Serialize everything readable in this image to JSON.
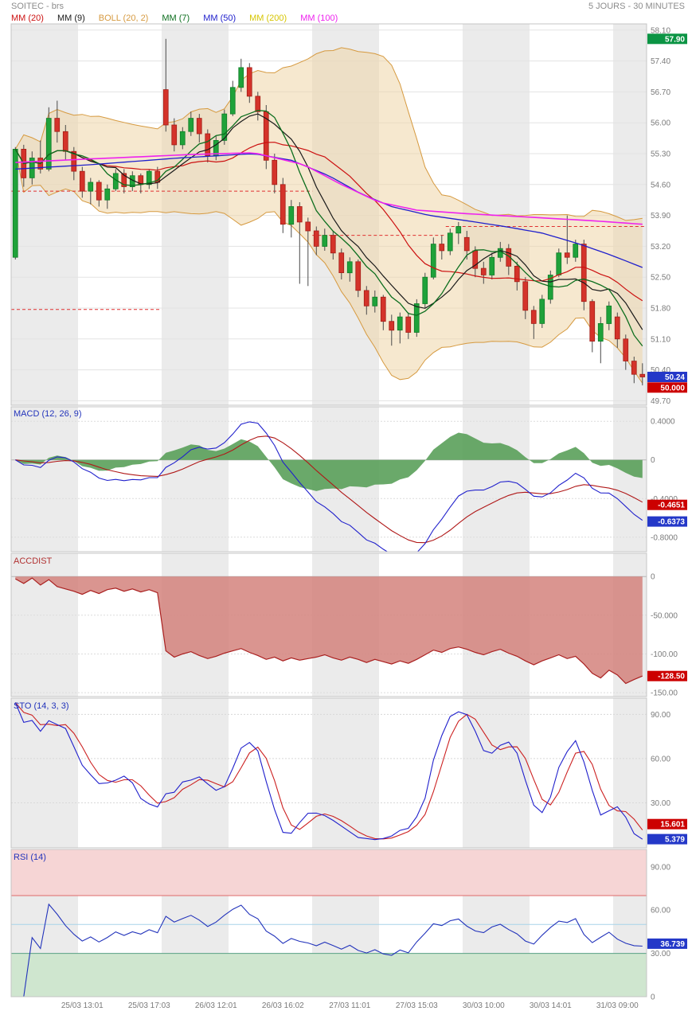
{
  "header": {
    "title": "SOITEC - brs",
    "timeframe": "5 JOURS - 30 MINUTES"
  },
  "legend": [
    {
      "label": "MM (20)",
      "color": "#cc1111"
    },
    {
      "label": "MM (9)",
      "color": "#1a1a1a"
    },
    {
      "label": "BOLL (20, 2)",
      "color": "#d69a40"
    },
    {
      "label": "MM (7)",
      "color": "#0c6e1e"
    },
    {
      "label": "MM (50)",
      "color": "#2020cc"
    },
    {
      "label": "MM (200)",
      "color": "#d6c500"
    },
    {
      "label": "MM (100)",
      "color": "#ee22ee"
    }
  ],
  "chart_data": {
    "type": "candlestick+indicators",
    "title": "SOITEC - brs",
    "subtitle": "5 JOURS - 30 MINUTES",
    "x_labels": [
      {
        "bar": 8,
        "text": "25/03 13:01"
      },
      {
        "bar": 16,
        "text": "25/03 17:03"
      },
      {
        "bar": 24,
        "text": "26/03 12:01"
      },
      {
        "bar": 32,
        "text": "26/03 16:02"
      },
      {
        "bar": 40,
        "text": "27/03 11:01"
      },
      {
        "bar": 48,
        "text": "27/03 15:03"
      },
      {
        "bar": 56,
        "text": "30/03 10:00"
      },
      {
        "bar": 64,
        "text": "30/03 14:01"
      },
      {
        "bar": 72,
        "text": "31/03 09:00"
      }
    ],
    "session_bands": [
      [
        0,
        8
      ],
      [
        18,
        26
      ],
      [
        36,
        44
      ],
      [
        54,
        62
      ],
      [
        72,
        76
      ]
    ],
    "candles": [
      [
        52.95,
        55.45,
        52.9,
        55.4
      ],
      [
        55.4,
        55.5,
        54.55,
        54.75
      ],
      [
        54.75,
        55.35,
        54.6,
        55.2
      ],
      [
        55.2,
        55.6,
        54.85,
        54.95
      ],
      [
        54.95,
        56.35,
        54.9,
        56.1
      ],
      [
        56.1,
        56.5,
        55.55,
        55.8
      ],
      [
        55.8,
        55.95,
        55.15,
        55.35
      ],
      [
        55.35,
        55.45,
        54.7,
        54.9
      ],
      [
        54.9,
        55.0,
        54.3,
        54.45
      ],
      [
        54.45,
        54.75,
        54.15,
        54.65
      ],
      [
        54.65,
        54.7,
        54.1,
        54.25
      ],
      [
        54.25,
        54.6,
        54.05,
        54.5
      ],
      [
        54.5,
        54.95,
        54.45,
        54.85
      ],
      [
        54.85,
        54.95,
        54.4,
        54.55
      ],
      [
        54.55,
        54.9,
        54.45,
        54.8
      ],
      [
        54.8,
        54.85,
        54.4,
        54.6
      ],
      [
        54.6,
        54.95,
        54.5,
        54.9
      ],
      [
        54.9,
        55.0,
        54.5,
        54.65
      ],
      [
        56.75,
        57.9,
        55.8,
        55.95
      ],
      [
        55.95,
        56.1,
        55.35,
        55.5
      ],
      [
        55.5,
        55.9,
        55.4,
        55.8
      ],
      [
        55.8,
        56.25,
        55.7,
        56.1
      ],
      [
        56.1,
        56.2,
        55.55,
        55.75
      ],
      [
        55.75,
        55.85,
        55.1,
        55.25
      ],
      [
        55.25,
        55.7,
        55.15,
        55.6
      ],
      [
        55.6,
        56.3,
        55.5,
        56.2
      ],
      [
        56.2,
        56.95,
        56.15,
        56.8
      ],
      [
        56.8,
        57.45,
        56.7,
        57.25
      ],
      [
        57.25,
        57.35,
        56.45,
        56.6
      ],
      [
        56.6,
        56.7,
        56.05,
        56.25
      ],
      [
        56.25,
        56.4,
        54.95,
        55.15
      ],
      [
        55.15,
        55.3,
        54.4,
        54.6
      ],
      [
        54.6,
        54.75,
        53.5,
        53.7
      ],
      [
        53.7,
        54.25,
        53.4,
        54.1
      ],
      [
        54.1,
        54.2,
        52.35,
        53.75
      ],
      [
        53.75,
        53.85,
        52.3,
        53.55
      ],
      [
        53.55,
        53.65,
        53.0,
        53.2
      ],
      [
        53.2,
        53.6,
        53.1,
        53.45
      ],
      [
        53.45,
        53.55,
        52.9,
        53.05
      ],
      [
        53.05,
        53.15,
        52.45,
        52.6
      ],
      [
        52.6,
        52.95,
        52.4,
        52.85
      ],
      [
        52.85,
        52.9,
        52.05,
        52.2
      ],
      [
        52.2,
        52.3,
        51.65,
        51.85
      ],
      [
        51.85,
        52.2,
        51.7,
        52.05
      ],
      [
        52.05,
        52.1,
        51.3,
        51.5
      ],
      [
        51.5,
        51.65,
        50.95,
        51.3
      ],
      [
        51.3,
        51.7,
        51.0,
        51.6
      ],
      [
        51.6,
        51.7,
        51.1,
        51.25
      ],
      [
        51.25,
        52.0,
        51.15,
        51.9
      ],
      [
        51.9,
        52.6,
        51.8,
        52.5
      ],
      [
        52.5,
        53.4,
        52.45,
        53.25
      ],
      [
        53.25,
        53.45,
        52.9,
        53.1
      ],
      [
        53.1,
        53.6,
        53.0,
        53.5
      ],
      [
        53.5,
        53.75,
        53.25,
        53.65
      ],
      [
        53.4,
        53.55,
        52.9,
        53.1
      ],
      [
        53.1,
        53.2,
        52.5,
        52.7
      ],
      [
        52.7,
        52.85,
        52.35,
        52.55
      ],
      [
        52.55,
        53.05,
        52.45,
        52.95
      ],
      [
        52.95,
        53.3,
        52.85,
        53.15
      ],
      [
        53.15,
        53.25,
        52.55,
        52.75
      ],
      [
        52.75,
        52.85,
        52.2,
        52.4
      ],
      [
        52.4,
        52.5,
        51.55,
        51.75
      ],
      [
        51.75,
        51.85,
        51.1,
        51.45
      ],
      [
        51.45,
        52.1,
        51.35,
        52.0
      ],
      [
        52.0,
        52.65,
        51.9,
        52.55
      ],
      [
        52.55,
        53.15,
        52.5,
        53.05
      ],
      [
        53.05,
        53.9,
        52.8,
        52.95
      ],
      [
        52.95,
        53.35,
        52.85,
        53.25
      ],
      [
        53.25,
        53.35,
        51.75,
        51.95
      ],
      [
        51.95,
        52.0,
        50.8,
        51.05
      ],
      [
        51.05,
        51.6,
        50.55,
        51.45
      ],
      [
        51.45,
        51.95,
        51.3,
        51.85
      ],
      [
        51.6,
        51.7,
        50.9,
        51.1
      ],
      [
        51.1,
        51.2,
        50.4,
        50.6
      ],
      [
        50.6,
        50.7,
        50.1,
        50.3
      ],
      [
        50.3,
        50.55,
        50.05,
        50.24
      ]
    ],
    "overlays": {
      "mm20": {
        "period": 20,
        "color": "#cc1111"
      },
      "mm9": {
        "period": 9,
        "color": "#1a1a1a"
      },
      "mm7": {
        "period": 7,
        "color": "#0c6e1e"
      },
      "boll": {
        "period": 20,
        "k": 2,
        "color": "#d69a40",
        "fill": "rgba(239,214,167,0.55)"
      },
      "mm50": {
        "period": 50,
        "color": "#2020cc",
        "points": [
          [
            0,
            54.95
          ],
          [
            0.12,
            55.05
          ],
          [
            0.26,
            55.2
          ],
          [
            0.38,
            55.3
          ],
          [
            0.44,
            55.15
          ],
          [
            0.5,
            54.8
          ],
          [
            0.55,
            54.4
          ],
          [
            0.6,
            54.1
          ],
          [
            0.66,
            53.9
          ],
          [
            0.72,
            53.78
          ],
          [
            0.78,
            53.65
          ],
          [
            0.84,
            53.5
          ],
          [
            0.9,
            53.25
          ],
          [
            0.95,
            53.0
          ],
          [
            1,
            52.72
          ]
        ]
      },
      "mm100": {
        "period": 100,
        "color": "#ee22ee",
        "points": [
          [
            0,
            55.1
          ],
          [
            0.12,
            55.18
          ],
          [
            0.28,
            55.28
          ],
          [
            0.38,
            55.32
          ],
          [
            0.46,
            55.05
          ],
          [
            0.52,
            54.6
          ],
          [
            0.58,
            54.2
          ],
          [
            0.64,
            54.02
          ],
          [
            0.72,
            53.94
          ],
          [
            0.82,
            53.86
          ],
          [
            0.92,
            53.78
          ],
          [
            1,
            53.7
          ]
        ]
      },
      "mm200": {
        "period": 200,
        "color": "#d6c500",
        "points": []
      }
    },
    "reference_lines": [
      {
        "value": 54.45,
        "from": 0.0,
        "to": 0.474
      },
      {
        "value": 51.77,
        "from": 0.0,
        "to": 0.237
      },
      {
        "value": 53.45,
        "from": 0.474,
        "to": 0.684
      },
      {
        "value": 53.65,
        "from": 0.684,
        "to": 1.0
      }
    ],
    "panels": {
      "main": {
        "range": [
          49.6,
          58.24
        ],
        "ticks": [
          {
            "v": 58.1,
            "label": "58.10"
          },
          {
            "v": 57.4,
            "label": "57.40"
          },
          {
            "v": 56.7,
            "label": "56.70"
          },
          {
            "v": 56.0,
            "label": "56.00"
          },
          {
            "v": 55.3,
            "label": "55.30"
          },
          {
            "v": 54.6,
            "label": "54.60"
          },
          {
            "v": 53.9,
            "label": "53.90"
          },
          {
            "v": 53.2,
            "label": "53.20"
          },
          {
            "v": 52.5,
            "label": "52.50"
          },
          {
            "v": 51.8,
            "label": "51.80"
          },
          {
            "v": 51.1,
            "label": "51.10"
          },
          {
            "v": 50.4,
            "label": "50.40"
          },
          {
            "v": 49.7,
            "label": "49.70"
          }
        ],
        "badges": [
          {
            "v": 57.9,
            "label": "57.90",
            "color": "#0b9444"
          },
          {
            "v": 50.24,
            "label": "50.24",
            "color": "#2438c8"
          },
          {
            "v": 50.0,
            "label": "50.000",
            "color": "#cc0000"
          }
        ]
      },
      "macd": {
        "label": "MACD (12, 26, 9)",
        "params": [
          12,
          26,
          9
        ],
        "range": [
          -0.95,
          0.55
        ],
        "ticks": [
          {
            "v": 0.4,
            "label": "0.4000"
          },
          {
            "v": 0,
            "label": "0"
          },
          {
            "v": -0.4,
            "label": "-0.4000"
          },
          {
            "v": -0.8,
            "label": "-0.8000"
          }
        ],
        "badges": [
          {
            "v": -0.4651,
            "label": "-0.4651",
            "color": "#cc0000"
          },
          {
            "v": -0.6373,
            "label": "-0.6373",
            "color": "#2438c8"
          }
        ]
      },
      "accdist": {
        "label": "ACCDIST",
        "range": [
          -155,
          30
        ],
        "ticks": [
          {
            "v": 0,
            "label": "0"
          },
          {
            "v": -50,
            "label": "-50.000"
          },
          {
            "v": -100,
            "label": "-100.00"
          },
          {
            "v": -150,
            "label": "-150.00"
          }
        ],
        "badges": [
          {
            "v": -128.5,
            "label": "-128.50",
            "color": "#cc0000"
          }
        ],
        "values": [
          -3,
          -9,
          -2,
          -11,
          -4,
          -13,
          -16,
          -19,
          -23,
          -18,
          -22,
          -17,
          -15,
          -19,
          -16,
          -20,
          -17,
          -21,
          -96,
          -104,
          -100,
          -97,
          -102,
          -106,
          -103,
          -99,
          -96,
          -93,
          -98,
          -102,
          -107,
          -104,
          -109,
          -105,
          -108,
          -106,
          -104,
          -101,
          -105,
          -108,
          -104,
          -107,
          -111,
          -107,
          -110,
          -113,
          -109,
          -112,
          -107,
          -101,
          -95,
          -98,
          -93,
          -91,
          -94,
          -98,
          -101,
          -97,
          -94,
          -99,
          -103,
          -109,
          -114,
          -109,
          -105,
          -101,
          -106,
          -103,
          -113,
          -125,
          -131,
          -121,
          -127,
          -138,
          -133,
          -128.5
        ]
      },
      "sto": {
        "label": "STO (14, 3, 3)",
        "params": [
          14,
          3,
          3
        ],
        "range": [
          -0.5,
          101
        ],
        "ticks": [
          {
            "v": 90,
            "label": "90.00"
          },
          {
            "v": 60,
            "label": "60.00"
          },
          {
            "v": 30,
            "label": "30.00"
          }
        ],
        "badges": [
          {
            "v": 15.601,
            "label": "15.601",
            "color": "#cc0000"
          },
          {
            "v": 5.379,
            "label": "5.379",
            "color": "#2438c8"
          }
        ]
      },
      "rsi": {
        "label": "RSI (14)",
        "params": [
          14
        ],
        "range": [
          0,
          102
        ],
        "levels": {
          "overbought": 70,
          "mid": 50,
          "oversold": 30
        },
        "ticks": [
          {
            "v": 90,
            "label": "90.00"
          },
          {
            "v": 60,
            "label": "60.00"
          },
          {
            "v": 30,
            "label": "30.00"
          },
          {
            "v": 0,
            "label": "0"
          }
        ],
        "badges": [
          {
            "v": 36.739,
            "label": "36.739",
            "color": "#2438c8"
          }
        ]
      }
    }
  }
}
